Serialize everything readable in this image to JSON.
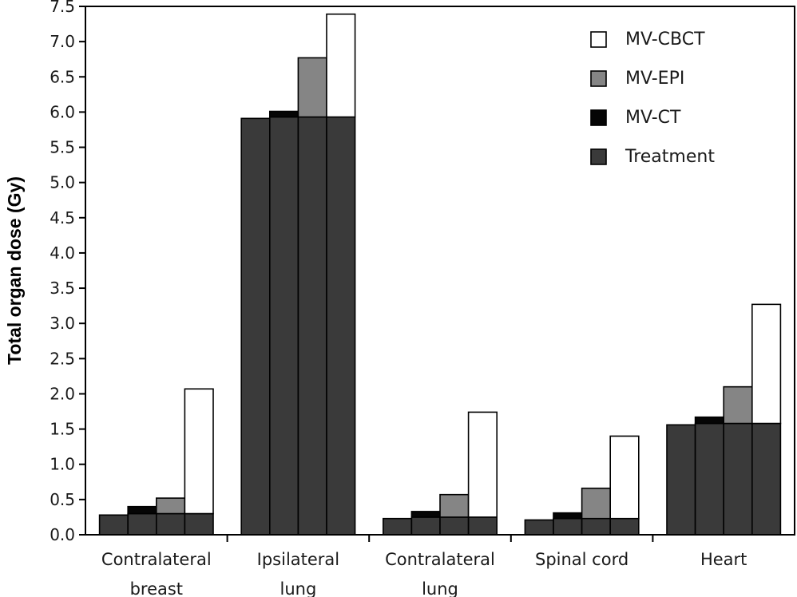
{
  "chart_data": {
    "type": "bar",
    "stacked": true,
    "grouped": true,
    "ylabel": "Total organ dose (Gy)",
    "ylim": [
      0,
      7.5
    ],
    "ytick_step": 0.5,
    "grid": false,
    "legend_position": "top-right",
    "categories": [
      [
        "Contralateral",
        "breast"
      ],
      [
        "Ipsilateral",
        "lung"
      ],
      [
        "Contralateral",
        "lung"
      ],
      [
        "Spinal cord"
      ],
      [
        "Heart"
      ]
    ],
    "legend": [
      "MV-CBCT",
      "MV-EPI",
      "MV-CT",
      "Treatment"
    ],
    "segment_colors": {
      "Treatment": "#3a3a3a",
      "MV-CT": "#050505",
      "MV-EPI": "#858585",
      "MV-CBCT": "#ffffff"
    },
    "bars": [
      [
        {
          "Treatment": 0.28
        },
        {
          "Treatment": 0.3,
          "MV-CT": 0.1
        },
        {
          "Treatment": 0.3,
          "MV-EPI": 0.22
        },
        {
          "Treatment": 0.3,
          "MV-CBCT": 1.77
        }
      ],
      [
        {
          "Treatment": 5.91
        },
        {
          "Treatment": 5.93,
          "MV-CT": 0.08
        },
        {
          "Treatment": 5.93,
          "MV-EPI": 0.84
        },
        {
          "Treatment": 5.93,
          "MV-CBCT": 1.46
        }
      ],
      [
        {
          "Treatment": 0.23
        },
        {
          "Treatment": 0.25,
          "MV-CT": 0.08
        },
        {
          "Treatment": 0.25,
          "MV-EPI": 0.32
        },
        {
          "Treatment": 0.25,
          "MV-CBCT": 1.49
        }
      ],
      [
        {
          "Treatment": 0.21
        },
        {
          "Treatment": 0.23,
          "MV-CT": 0.08
        },
        {
          "Treatment": 0.23,
          "MV-EPI": 0.43
        },
        {
          "Treatment": 0.23,
          "MV-CBCT": 1.17
        }
      ],
      [
        {
          "Treatment": 1.56
        },
        {
          "Treatment": 1.58,
          "MV-CT": 0.09
        },
        {
          "Treatment": 1.58,
          "MV-EPI": 0.52
        },
        {
          "Treatment": 1.58,
          "MV-CBCT": 1.69
        }
      ]
    ]
  }
}
